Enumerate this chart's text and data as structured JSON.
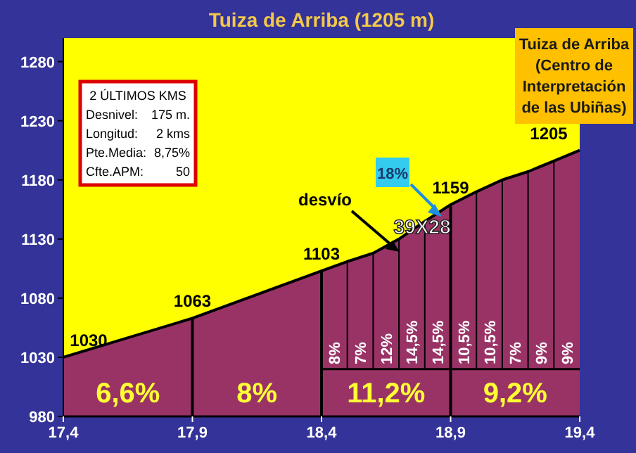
{
  "chart_data": {
    "type": "area",
    "title": "Tuiza de Arriba (1205 m)",
    "x": [
      17.4,
      17.9,
      18.4,
      18.5,
      18.6,
      18.7,
      18.8,
      18.9,
      19.0,
      19.1,
      19.2,
      19.3,
      19.4
    ],
    "series": [
      {
        "color": "#993366",
        "values": [
          1030,
          1063,
          1103,
          1111,
          1118,
          1130,
          1145,
          1159,
          1170,
          1180,
          1187,
          1196,
          1205
        ],
        "value_labels": [
          "1030",
          "1063",
          "1103",
          null,
          null,
          null,
          null,
          "1159",
          null,
          null,
          null,
          null,
          "1205"
        ]
      }
    ],
    "xlim": [
      17.4,
      19.4
    ],
    "ylim": [
      980,
      1300
    ],
    "xticks": [
      {
        "value": 17.4,
        "label": "17,4"
      },
      {
        "value": 17.9,
        "label": "17,9"
      },
      {
        "value": 18.4,
        "label": "18,4"
      },
      {
        "value": 18.9,
        "label": "18,9"
      },
      {
        "value": 19.4,
        "label": "19,4"
      }
    ],
    "yticks": [
      980,
      1030,
      1080,
      1130,
      1180,
      1230,
      1280
    ],
    "grid": false,
    "ref_lines": [
      {
        "axis": "x",
        "value": 17.9
      },
      {
        "axis": "x",
        "value": 18.4
      },
      {
        "axis": "x",
        "value": 18.5
      },
      {
        "axis": "x",
        "value": 18.6
      },
      {
        "axis": "x",
        "value": 18.7
      },
      {
        "axis": "x",
        "value": 18.8
      },
      {
        "axis": "x",
        "value": 18.9
      },
      {
        "axis": "x",
        "value": 19.0
      },
      {
        "axis": "x",
        "value": 19.1
      },
      {
        "axis": "x",
        "value": 19.2
      },
      {
        "axis": "x",
        "value": 19.3
      }
    ],
    "annotations": [
      "Tuiza de Arriba\n(Centro de\nInterpretación\nde las Ubiñas)",
      "2 ÚLTIMOS KMS\nDesnivel:\t175 m.\nLongitud:\t2 kms\nPte.Media:\t8,75%\nCfte.APM:\t50",
      "desvío",
      "18%",
      "39X28",
      "6,6%",
      "8%",
      "11,2%",
      "9,2%",
      "8%",
      "7%",
      "12%",
      "14,5%",
      "14,5%",
      "10,5%",
      "10,5%",
      "7%",
      "9%",
      "9%"
    ]
  }
}
